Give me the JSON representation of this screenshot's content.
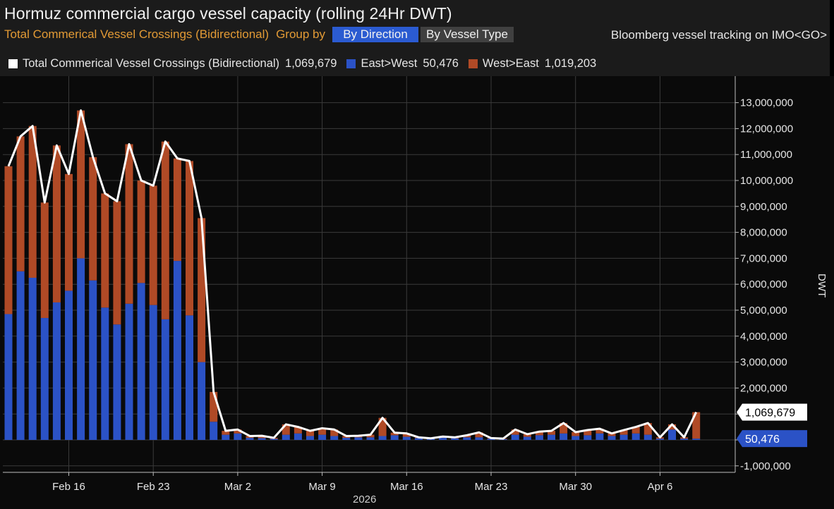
{
  "header": {
    "title": "Hormuz commercial cargo vessel capacity (rolling 24Hr DWT)",
    "subtitle": "Total Commerical Vessel Crossings (Bidirectional)",
    "group_by_label": "Group by",
    "buttons": {
      "by_direction": "By Direction",
      "by_vessel_type": "By Vessel Type"
    },
    "source_note": "Bloomberg vessel tracking on IMO<GO>"
  },
  "legend": {
    "total": {
      "label": "Total Commerical Vessel Crossings (Bidirectional)",
      "value": "1,069,679"
    },
    "east_west": {
      "label": "East>West",
      "value": "50,476"
    },
    "west_east": {
      "label": "West>East",
      "value": "1,019,203"
    }
  },
  "colors": {
    "east_west": "#2b52c6",
    "west_east": "#b04a26",
    "total_line": "#ffffff",
    "panel": "#1b1b1b",
    "plot_bg": "#0a0a0a",
    "grid": "#3a3a3a"
  },
  "chart_data": {
    "type": "bar",
    "stacked": true,
    "ylabel": "DWT",
    "ylim": [
      -1000000,
      13500000
    ],
    "yticks": [
      {
        "v": 13000000,
        "label": "13,000,000"
      },
      {
        "v": 12000000,
        "label": "12,000,000"
      },
      {
        "v": 11000000,
        "label": "11,000,000"
      },
      {
        "v": 10000000,
        "label": "10,000,000"
      },
      {
        "v": 9000000,
        "label": "9,000,000"
      },
      {
        "v": 8000000,
        "label": "8,000,000"
      },
      {
        "v": 7000000,
        "label": "7,000,000"
      },
      {
        "v": 6000000,
        "label": "6,000,000"
      },
      {
        "v": 5000000,
        "label": "5,000,000"
      },
      {
        "v": 4000000,
        "label": "4,000,000"
      },
      {
        "v": 3000000,
        "label": "3,000,000"
      },
      {
        "v": 2000000,
        "label": "2,000,000"
      },
      {
        "v": 1000000,
        "label": "1,000,000"
      },
      {
        "v": 0,
        "label": "0"
      },
      {
        "v": -1000000,
        "label": "-1,000,000"
      }
    ],
    "x_tick_labels": [
      {
        "index": 5,
        "label": "Feb 16"
      },
      {
        "index": 12,
        "label": "Feb 23"
      },
      {
        "index": 19,
        "label": "Mar 2"
      },
      {
        "index": 26,
        "label": "Mar 9"
      },
      {
        "index": 33,
        "label": "Mar 16"
      },
      {
        "index": 40,
        "label": "Mar 23"
      },
      {
        "index": 47,
        "label": "Mar 30"
      },
      {
        "index": 54,
        "label": "Apr 6"
      }
    ],
    "x_year_label": "2026",
    "series": [
      {
        "name": "East>West",
        "values": [
          4850000,
          6500000,
          6250000,
          4700000,
          5300000,
          5750000,
          7000000,
          6150000,
          5100000,
          4450000,
          5250000,
          6050000,
          5200000,
          4650000,
          6900000,
          4800000,
          3000000,
          700000,
          200000,
          250000,
          80000,
          70000,
          40000,
          200000,
          250000,
          150000,
          200000,
          150000,
          80000,
          100000,
          100000,
          150000,
          180000,
          120000,
          70000,
          40000,
          80000,
          60000,
          100000,
          100000,
          50000,
          30000,
          200000,
          120000,
          180000,
          200000,
          250000,
          150000,
          180000,
          250000,
          150000,
          200000,
          250000,
          200000,
          50000,
          400000,
          50000,
          50476
        ]
      },
      {
        "name": "West>East",
        "values": [
          5700000,
          5200000,
          5850000,
          4450000,
          6050000,
          4500000,
          5700000,
          4750000,
          4400000,
          4750000,
          6150000,
          3950000,
          4600000,
          6850000,
          3950000,
          5950000,
          5550000,
          1150000,
          150000,
          150000,
          70000,
          90000,
          40000,
          400000,
          250000,
          200000,
          250000,
          250000,
          70000,
          60000,
          100000,
          700000,
          100000,
          130000,
          30000,
          20000,
          50000,
          40000,
          80000,
          190000,
          20000,
          20000,
          200000,
          100000,
          140000,
          150000,
          400000,
          150000,
          200000,
          180000,
          100000,
          180000,
          250000,
          450000,
          50000,
          200000,
          50000,
          1019203
        ]
      }
    ],
    "total": [
      10550000,
      11700000,
      12100000,
      9150000,
      11350000,
      10250000,
      12700000,
      10900000,
      9500000,
      9200000,
      11400000,
      10000000,
      9800000,
      11500000,
      10850000,
      10750000,
      8550000,
      1850000,
      350000,
      400000,
      150000,
      160000,
      80000,
      600000,
      500000,
      350000,
      450000,
      400000,
      150000,
      160000,
      200000,
      850000,
      280000,
      250000,
      100000,
      60000,
      130000,
      100000,
      180000,
      290000,
      70000,
      50000,
      400000,
      220000,
      320000,
      350000,
      650000,
      300000,
      380000,
      430000,
      250000,
      380000,
      500000,
      650000,
      100000,
      600000,
      100000,
      1069679
    ],
    "last_value_labels": {
      "total": "1,069,679",
      "east_west": "50,476"
    }
  }
}
